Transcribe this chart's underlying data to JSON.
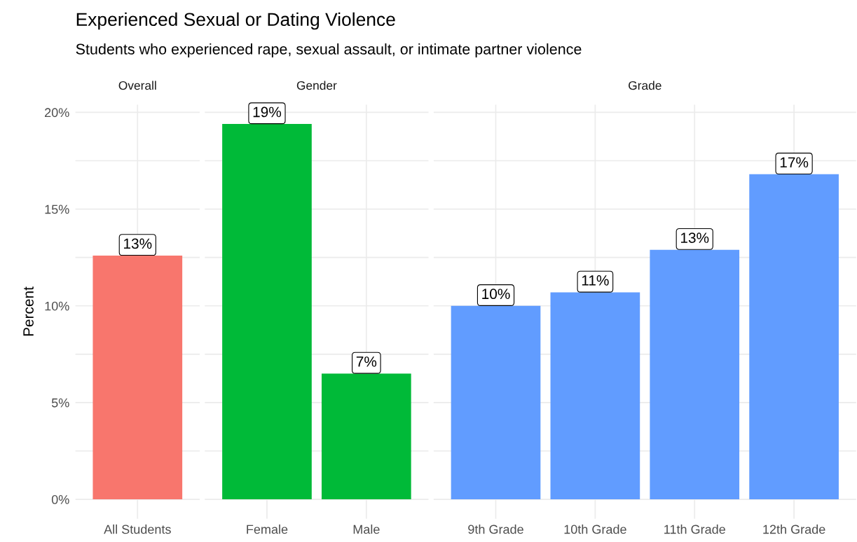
{
  "chart_data": [
    {
      "type": "bar",
      "title": "Experienced Sexual or Dating Violence",
      "subtitle": "Students who experienced rape, sexual assault, or intimate partner violence",
      "ylabel": "Percent",
      "annotations": [
        "Overall"
      ],
      "categories": [
        "All Students"
      ],
      "values": [
        12.6
      ],
      "color": "#f8766d",
      "value_labels": [
        "13%"
      ],
      "ylim": [
        -1,
        20.4
      ],
      "yticks": [
        {
          "value": 0,
          "label": "0%"
        },
        {
          "value": 2.5,
          "label": null
        },
        {
          "value": 5,
          "label": "5%"
        },
        {
          "value": 7.5,
          "label": null
        },
        {
          "value": 10,
          "label": "10%"
        },
        {
          "value": 12.5,
          "label": null
        },
        {
          "value": 15,
          "label": "15%"
        },
        {
          "value": 17.5,
          "label": null
        },
        {
          "value": 20,
          "label": "20%"
        }
      ],
      "grid": true
    },
    {
      "type": "bar",
      "annotations": [
        "Gender"
      ],
      "categories": [
        "Female",
        "Male"
      ],
      "values": [
        19.4,
        6.5
      ],
      "color": "#00ba38",
      "value_labels": [
        "19%",
        "7%"
      ],
      "ylim": [
        -1,
        20.4
      ],
      "yticks": [
        {
          "value": 0,
          "label": null
        },
        {
          "value": 2.5,
          "label": null
        },
        {
          "value": 5,
          "label": null
        },
        {
          "value": 7.5,
          "label": null
        },
        {
          "value": 10,
          "label": null
        },
        {
          "value": 12.5,
          "label": null
        },
        {
          "value": 15,
          "label": null
        },
        {
          "value": 17.5,
          "label": null
        },
        {
          "value": 20,
          "label": null
        }
      ],
      "tick_labels": "x",
      "grid": true
    },
    {
      "type": "bar",
      "annotations": [
        "Grade"
      ],
      "categories": [
        "9th Grade",
        "10th Grade",
        "11th Grade",
        "12th Grade"
      ],
      "values": [
        10.0,
        10.7,
        12.9,
        16.8
      ],
      "color": "#619cff",
      "value_labels": [
        "10%",
        "11%",
        "13%",
        "17%"
      ],
      "ylim": [
        -1,
        20.4
      ],
      "yticks": [
        {
          "value": 0,
          "label": null
        },
        {
          "value": 2.5,
          "label": null
        },
        {
          "value": 5,
          "label": null
        },
        {
          "value": 7.5,
          "label": null
        },
        {
          "value": 10,
          "label": null
        },
        {
          "value": 12.5,
          "label": null
        },
        {
          "value": 15,
          "label": null
        },
        {
          "value": 17.5,
          "label": null
        },
        {
          "value": 20,
          "label": null
        }
      ],
      "tick_labels": "x",
      "grid": true
    }
  ]
}
